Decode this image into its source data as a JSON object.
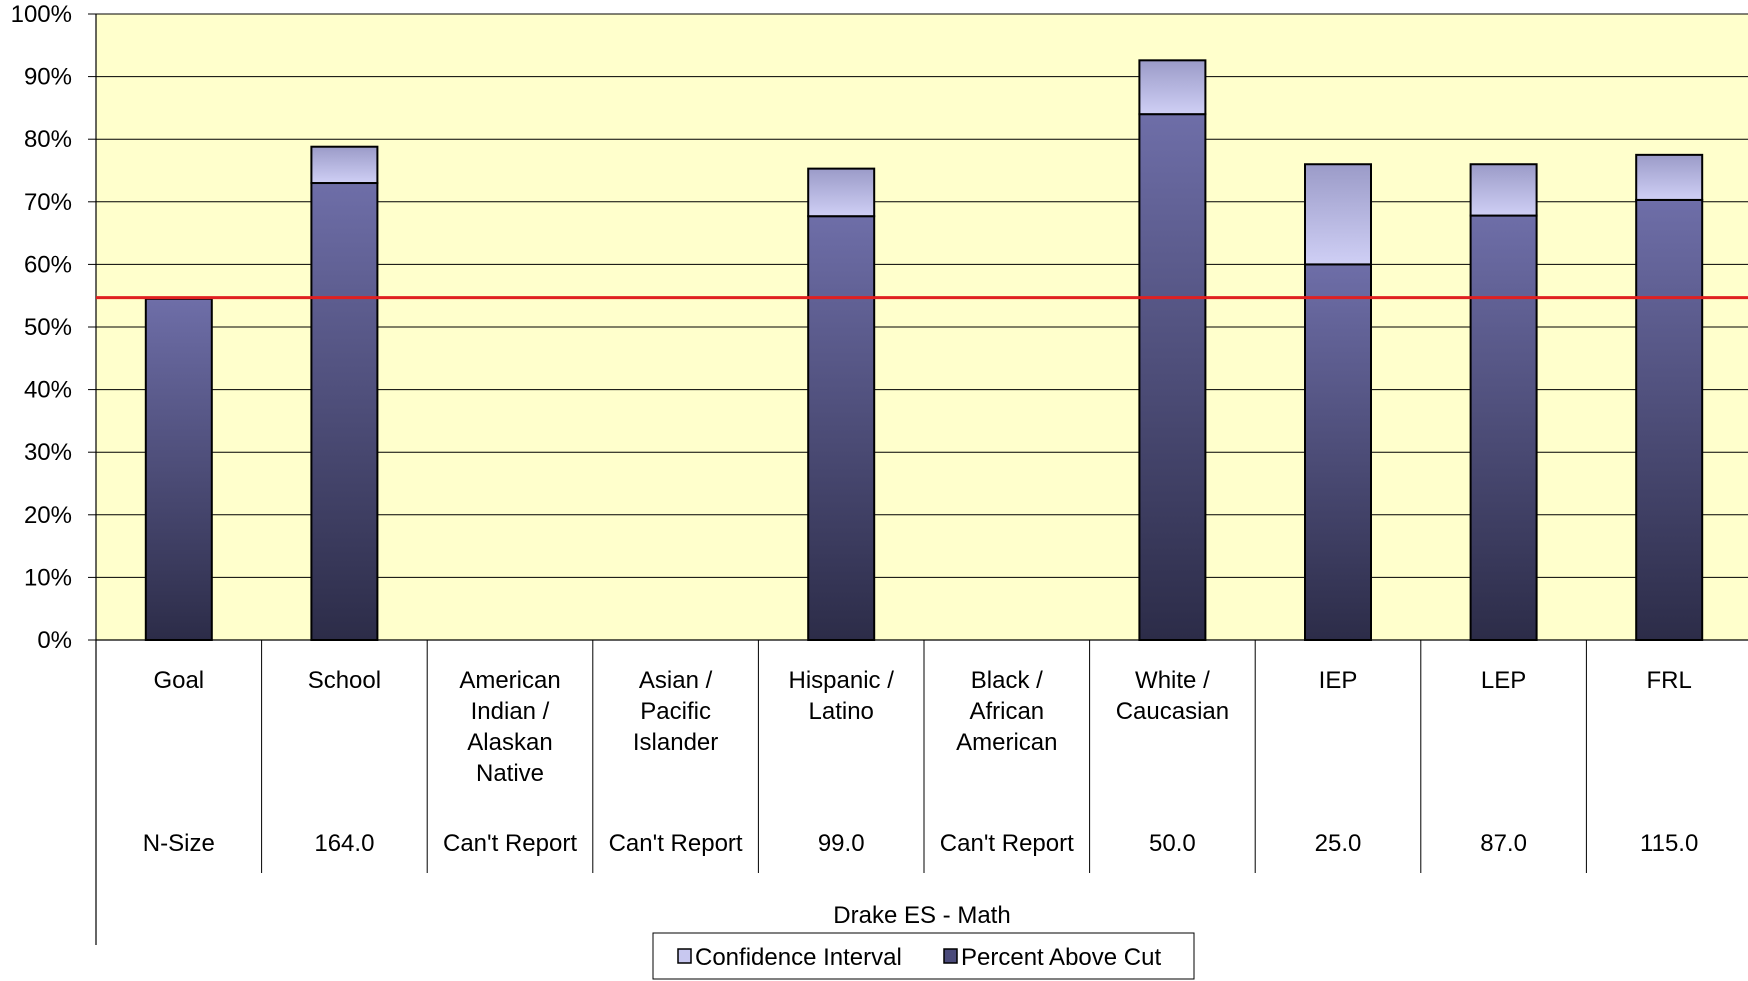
{
  "chart_data": {
    "type": "bar",
    "title": "Drake ES - Math",
    "categories": [
      [
        "Goal"
      ],
      [
        "School"
      ],
      [
        "American",
        "Indian /",
        "Alaskan",
        "Native"
      ],
      [
        "Asian /",
        "Pacific",
        "Islander"
      ],
      [
        "Hispanic /",
        "Latino"
      ],
      [
        "Black /",
        "African",
        "American"
      ],
      [
        "White /",
        "Caucasian"
      ],
      [
        "IEP"
      ],
      [
        "LEP"
      ],
      [
        "FRL"
      ]
    ],
    "n_size_label": "N-Size",
    "n_size": [
      "",
      "164.0",
      "Can't Report",
      "Can't Report",
      "99.0",
      "Can't Report",
      "50.0",
      "25.0",
      "87.0",
      "115.0"
    ],
    "series": [
      {
        "name": "Percent Above Cut",
        "color": "#4a4a7a",
        "values": [
          0.545,
          0.73,
          null,
          null,
          0.677,
          null,
          0.84,
          0.6,
          0.678,
          0.703
        ]
      },
      {
        "name": "Confidence Interval",
        "color": "#c8c8f0",
        "values": [
          0,
          0.058,
          null,
          null,
          0.076,
          null,
          0.086,
          0.16,
          0.082,
          0.072
        ]
      }
    ],
    "goal_line": 0.547,
    "goal_line_color": "#e02020",
    "ylim": [
      0,
      1
    ],
    "yticks": [
      "0%",
      "10%",
      "20%",
      "30%",
      "40%",
      "50%",
      "60%",
      "70%",
      "80%",
      "90%",
      "100%"
    ],
    "plot_background": "#ffffcc",
    "grid": true,
    "legend": {
      "position": "bottom",
      "items": [
        "Confidence Interval",
        "Percent Above Cut"
      ]
    }
  }
}
